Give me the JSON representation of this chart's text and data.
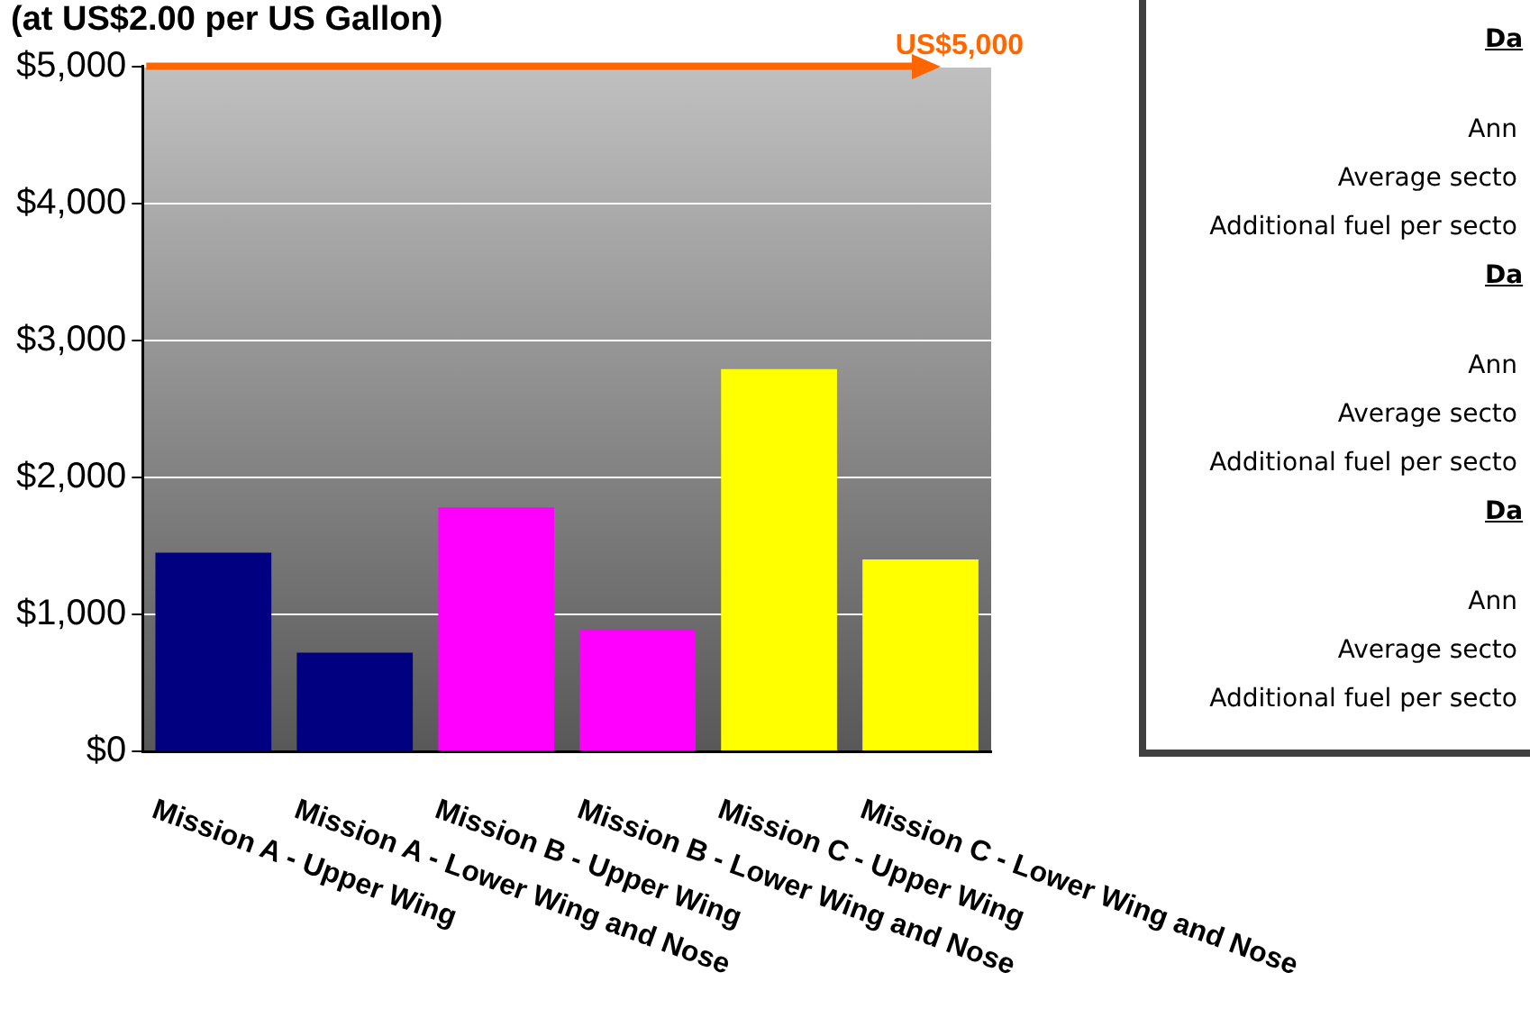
{
  "chart_data": {
    "type": "bar",
    "title": "(at US$2.00 per US Gallon)",
    "categories": [
      "Mission A - Upper Wing",
      "Mission A - Lower Wing and Nose",
      "Mission B - Upper Wing",
      "Mission B - Lower Wing and Nose",
      "Mission C - Upper Wing",
      "Mission C - Lower Wing and Nose"
    ],
    "values": [
      1450,
      720,
      1780,
      890,
      2790,
      1400
    ],
    "colors": [
      "#000080",
      "#000080",
      "#ff00ff",
      "#ff00ff",
      "#ffff00",
      "#ffff00"
    ],
    "ylim": [
      0,
      5000
    ],
    "yticks": [
      {
        "value": 0,
        "label": "$0"
      },
      {
        "value": 1000,
        "label": "$1,000"
      },
      {
        "value": 2000,
        "label": "$2,000"
      },
      {
        "value": 3000,
        "label": "$3,000"
      },
      {
        "value": 4000,
        "label": "$4,000"
      },
      {
        "value": 5000,
        "label": "$5,000"
      }
    ],
    "grid": "y",
    "legend": false,
    "ref_lines": [
      {
        "axis": "y",
        "value": 5000,
        "label": "US$5,000",
        "color": "#ff6600"
      }
    ],
    "annotations": [
      "Da",
      "Ann",
      "Average secto",
      "Additional fuel per secto",
      "Da",
      "Ann",
      "Average secto",
      "Additional fuel per secto",
      "Da",
      "Ann",
      "Average secto",
      "Additional fuel per secto"
    ]
  }
}
